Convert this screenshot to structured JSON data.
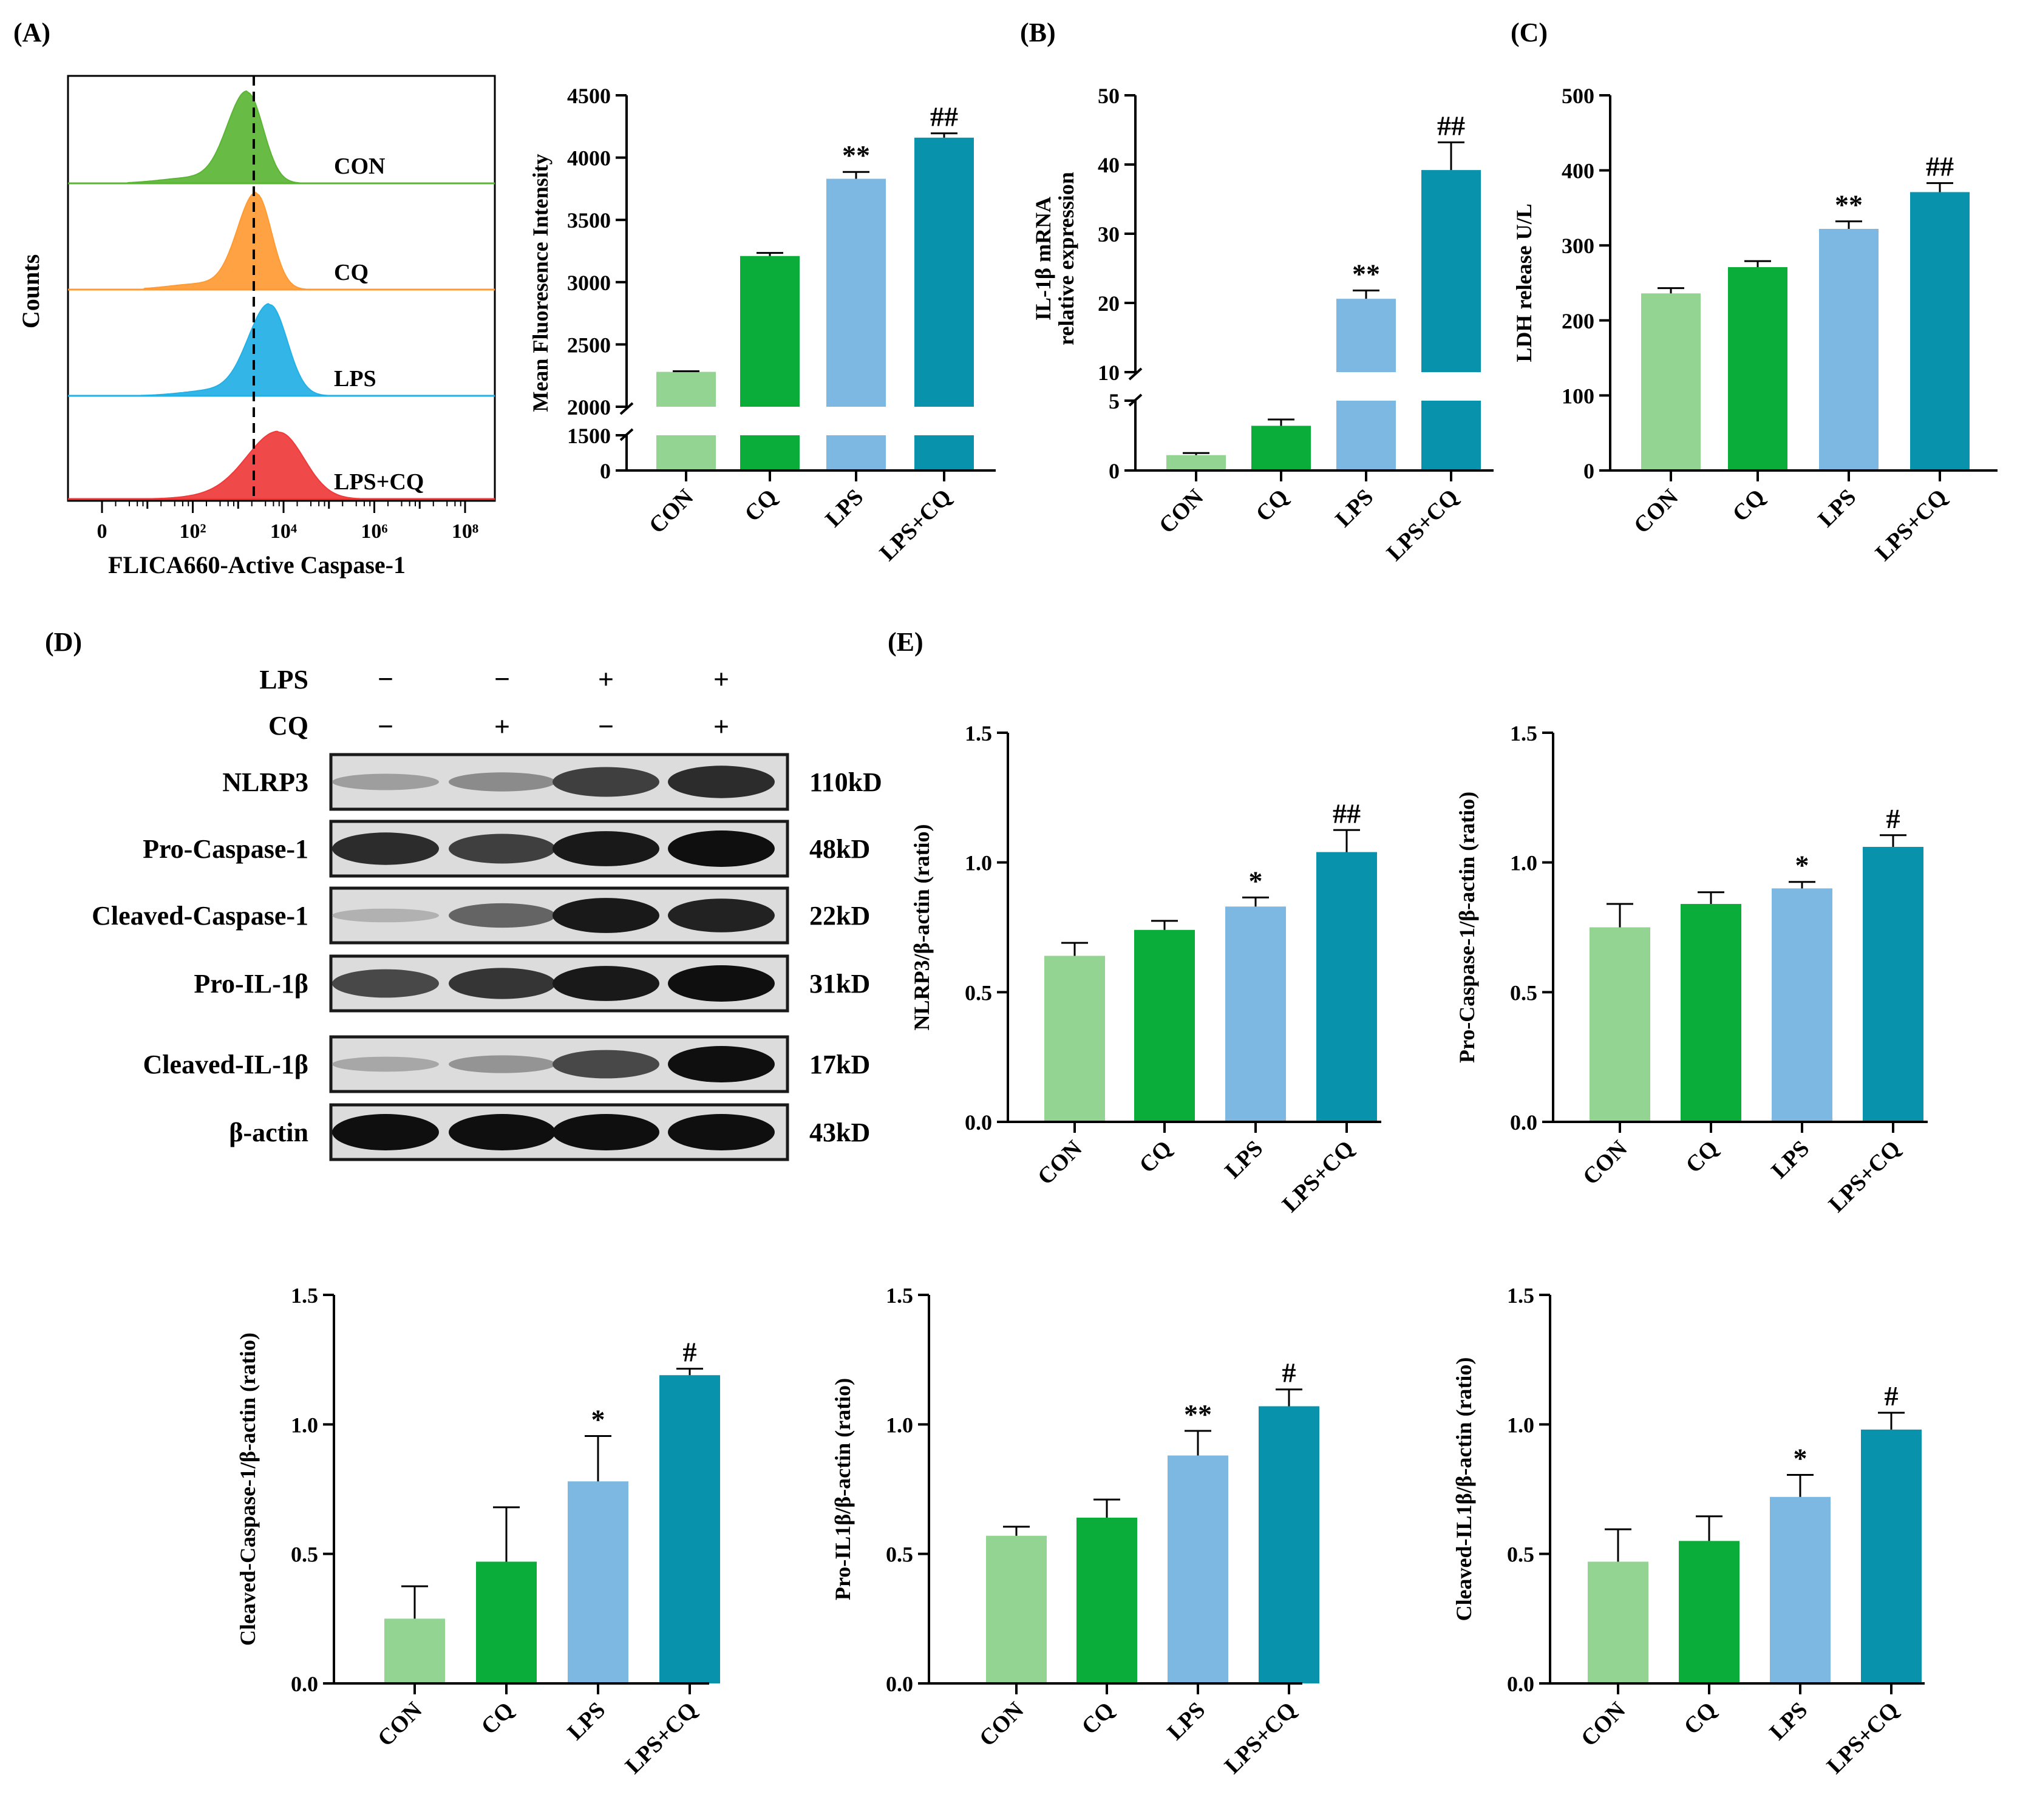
{
  "panel_labels": {
    "A": "(A)",
    "B": "(B)",
    "C": "(C)",
    "D": "(D)",
    "E": "(E)"
  },
  "groups": [
    "CON",
    "CQ",
    "LPS",
    "LPS+CQ"
  ],
  "colors": {
    "CON": "#93d493",
    "CQ": "#0aad3a",
    "LPS": "#7db8e2",
    "LPS+CQ": "#0892ac",
    "flow_CON": "#5bb535",
    "flow_CQ": "#ff9a33",
    "flow_LPS": "#22b0e5",
    "flow_LPSCQ": "#ef3a3a"
  },
  "flow": {
    "xlabel": "FLICA660-Active Caspase-1",
    "ylabel": "Counts",
    "xticks": [
      "0",
      "10²",
      "10⁴",
      "10⁶",
      "10⁸"
    ],
    "track_labels": [
      "CON",
      "CQ",
      "LPS",
      "LPS+CQ"
    ],
    "peak_log10": [
      3.2,
      3.4,
      3.7,
      3.9
    ]
  },
  "western": {
    "row_labels": {
      "lps": "LPS",
      "cq": "CQ"
    },
    "lps_signs": [
      "−",
      "−",
      "+",
      "+"
    ],
    "cq_signs": [
      "−",
      "+",
      "−",
      "+"
    ],
    "blots": [
      {
        "name": "NLRP3",
        "kd": "110kD",
        "intensity": [
          0.25,
          0.35,
          0.75,
          0.85
        ]
      },
      {
        "name": "Pro-Caspase-1",
        "kd": "48kD",
        "intensity": [
          0.85,
          0.75,
          0.95,
          1.0
        ]
      },
      {
        "name": "Cleaved-Caspase-1",
        "kd": "22kD",
        "intensity": [
          0.15,
          0.55,
          0.95,
          0.9
        ]
      },
      {
        "name": "Pro-IL-1β",
        "kd": "31kD",
        "intensity": [
          0.7,
          0.8,
          0.95,
          1.0
        ]
      },
      {
        "name": "Cleaved-IL-1β",
        "kd": "17kD",
        "intensity": [
          0.2,
          0.3,
          0.7,
          1.0
        ]
      },
      {
        "name": "β-actin",
        "kd": "43kD",
        "intensity": [
          1.0,
          1.0,
          1.0,
          1.0
        ]
      }
    ]
  },
  "chart_data": [
    {
      "id": "mfi",
      "type": "bar",
      "categories": [
        "CON",
        "CQ",
        "LPS",
        "LPS+CQ"
      ],
      "values": [
        2280,
        3210,
        3830,
        4160
      ],
      "errors": [
        5,
        25,
        55,
        35
      ],
      "significance": [
        "",
        "",
        "**",
        "##"
      ],
      "ylabel": "Mean Fluoresence Intensity",
      "axis_break": {
        "lower": [
          0,
          1500
        ],
        "upper": [
          2000,
          4500
        ]
      },
      "yticks_lower": [
        "0",
        "1500"
      ],
      "yticks_upper": [
        "2000",
        "2500",
        "3000",
        "3500",
        "4000",
        "4500"
      ],
      "ytick_values_lower": [
        0,
        1500
      ],
      "ytick_values_upper": [
        2000,
        2500,
        3000,
        3500,
        4000,
        4500
      ]
    },
    {
      "id": "il1b",
      "type": "bar",
      "categories": [
        "CON",
        "CQ",
        "LPS",
        "LPS+CQ"
      ],
      "values": [
        1.1,
        3.2,
        20.6,
        39.2
      ],
      "errors": [
        0.15,
        0.45,
        1.2,
        4.0
      ],
      "significance": [
        "",
        "",
        "**",
        "##"
      ],
      "ylabel_lines": [
        "IL-1β mRNA",
        "relative expression"
      ],
      "axis_break": {
        "lower": [
          0,
          5
        ],
        "upper": [
          10,
          50
        ]
      },
      "yticks_lower": [
        "0",
        "5"
      ],
      "yticks_upper": [
        "10",
        "20",
        "30",
        "40",
        "50"
      ],
      "ytick_values_lower": [
        0,
        5
      ],
      "ytick_values_upper": [
        10,
        20,
        30,
        40,
        50
      ]
    },
    {
      "id": "ldh",
      "type": "bar",
      "categories": [
        "CON",
        "CQ",
        "LPS",
        "LPS+CQ"
      ],
      "values": [
        236,
        271,
        322,
        371
      ],
      "errors": [
        7,
        8,
        10,
        12
      ],
      "significance": [
        "",
        "",
        "**",
        "##"
      ],
      "ylabel": "LDH release U/L",
      "ylim": [
        0,
        500
      ],
      "yticks": [
        "0",
        "100",
        "200",
        "300",
        "400",
        "500"
      ],
      "ytick_values": [
        0,
        100,
        200,
        300,
        400,
        500
      ]
    },
    {
      "id": "nlrp3",
      "type": "bar",
      "categories": [
        "CON",
        "CQ",
        "LPS",
        "LPS+CQ"
      ],
      "values": [
        0.64,
        0.74,
        0.83,
        1.04
      ],
      "errors": [
        0.05,
        0.035,
        0.035,
        0.085
      ],
      "significance": [
        "",
        "",
        "*",
        "##"
      ],
      "ylabel": "NLRP3/β-actin (ratio)",
      "ylim": [
        0,
        1.5
      ],
      "yticks": [
        "0.0",
        "0.5",
        "1.0",
        "1.5"
      ],
      "ytick_values": [
        0,
        0.5,
        1,
        1.5
      ]
    },
    {
      "id": "procasp",
      "type": "bar",
      "categories": [
        "CON",
        "CQ",
        "LPS",
        "LPS+CQ"
      ],
      "values": [
        0.75,
        0.84,
        0.9,
        1.06
      ],
      "errors": [
        0.09,
        0.045,
        0.025,
        0.045
      ],
      "significance": [
        "",
        "",
        "*",
        "#"
      ],
      "ylabel": "Pro-Caspase-1/β-actin (ratio)",
      "ylim": [
        0,
        1.5
      ],
      "yticks": [
        "0.0",
        "0.5",
        "1.0",
        "1.5"
      ],
      "ytick_values": [
        0,
        0.5,
        1,
        1.5
      ]
    },
    {
      "id": "clcasp",
      "type": "bar",
      "categories": [
        "CON",
        "CQ",
        "LPS",
        "LPS+CQ"
      ],
      "values": [
        0.25,
        0.47,
        0.78,
        1.19
      ],
      "errors": [
        0.125,
        0.21,
        0.175,
        0.025
      ],
      "significance": [
        "",
        "",
        "*",
        "#"
      ],
      "ylabel": "Cleaved-Caspase-1/β-actin (ratio)",
      "ylim": [
        0,
        1.5
      ],
      "yticks": [
        "0.0",
        "0.5",
        "1.0",
        "1.5"
      ],
      "ytick_values": [
        0,
        0.5,
        1,
        1.5
      ]
    },
    {
      "id": "proil",
      "type": "bar",
      "categories": [
        "CON",
        "CQ",
        "LPS",
        "LPS+CQ"
      ],
      "values": [
        0.57,
        0.64,
        0.88,
        1.07
      ],
      "errors": [
        0.035,
        0.07,
        0.095,
        0.065
      ],
      "significance": [
        "",
        "",
        "**",
        "#"
      ],
      "ylabel": "Pro-IL1β/β-actin (ratio)",
      "ylim": [
        0,
        1.5
      ],
      "yticks": [
        "0.0",
        "0.5",
        "1.0",
        "1.5"
      ],
      "ytick_values": [
        0,
        0.5,
        1,
        1.5
      ]
    },
    {
      "id": "clil",
      "type": "bar",
      "categories": [
        "CON",
        "CQ",
        "LPS",
        "LPS+CQ"
      ],
      "values": [
        0.47,
        0.55,
        0.72,
        0.98
      ],
      "errors": [
        0.125,
        0.095,
        0.085,
        0.065
      ],
      "significance": [
        "",
        "",
        "*",
        "#"
      ],
      "ylabel": "Cleaved-IL1β/β-actin (ratio)",
      "ylim": [
        0,
        1.5
      ],
      "yticks": [
        "0.0",
        "0.5",
        "1.0",
        "1.5"
      ],
      "ytick_values": [
        0,
        0.5,
        1,
        1.5
      ]
    }
  ]
}
